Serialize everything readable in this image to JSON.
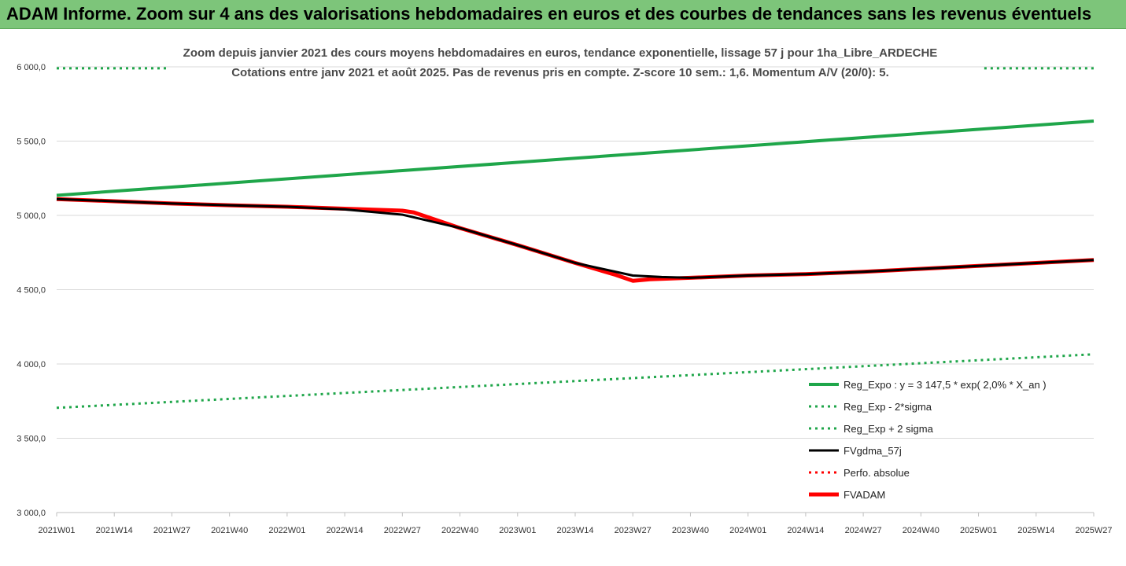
{
  "banner": {
    "title": "ADAM Informe. Zoom sur 4 ans des valorisations hebdomadaires en euros et des courbes de tendances sans les revenus éventuels"
  },
  "chart_data": {
    "type": "line",
    "title": "Zoom depuis janvier 2021 des cours moyens hebdomadaires en euros, tendance exponentielle, lissage 57 j pour 1ha_Libre_ARDECHE",
    "subtitle": "Cotations entre janv 2021 et août 2025.  Pas de revenus pris en compte. Z-score 10 sem.: 1,6. Momentum A/V (20/0): 5.",
    "xlabel": "",
    "ylabel": "",
    "ylim": [
      3000,
      6000
    ],
    "y_ticks": [
      "3 000,0",
      "3 500,0",
      "4 000,0",
      "4 500,0",
      "5 000,0",
      "5 500,0",
      "6 000,0"
    ],
    "x_ticks": [
      "2021W01",
      "2021W14",
      "2021W27",
      "2021W40",
      "2022W01",
      "2022W14",
      "2022W27",
      "2022W40",
      "2023W01",
      "2023W14",
      "2023W27",
      "2023W40",
      "2024W01",
      "2024W14",
      "2024W27",
      "2024W40",
      "2025W01",
      "2025W14",
      "2025W27"
    ],
    "grid": "horizontal",
    "legend_position": "bottom-right",
    "series": [
      {
        "name": "Reg_Expo : y = 3 147,5 * exp( 2,0% *  X_an )",
        "color": "#1fa64a",
        "style": "solid-thick",
        "points": [
          [
            0,
            5135
          ],
          [
            18,
            5635
          ]
        ]
      },
      {
        "name": "Reg_Exp - 2*sigma",
        "color": "#1fa64a",
        "style": "dotted",
        "points": [
          [
            0,
            3705
          ],
          [
            18,
            4065
          ]
        ]
      },
      {
        "name": "Reg_Exp + 2 sigma",
        "color": "#1fa64a",
        "style": "dotted",
        "points": [
          [
            0,
            5990
          ],
          [
            18,
            5990
          ]
        ]
      },
      {
        "name": "FVgdma_57j",
        "color": "#000000",
        "style": "solid",
        "points": [
          [
            0,
            5110
          ],
          [
            1,
            5095
          ],
          [
            2,
            5080
          ],
          [
            3,
            5068
          ],
          [
            4,
            5058
          ],
          [
            5,
            5040
          ],
          [
            6,
            5005
          ],
          [
            7,
            4915
          ],
          [
            8,
            4800
          ],
          [
            9,
            4680
          ],
          [
            10,
            4595
          ],
          [
            10.5,
            4585
          ],
          [
            11,
            4580
          ],
          [
            12,
            4595
          ],
          [
            13,
            4605
          ],
          [
            14,
            4620
          ],
          [
            15,
            4640
          ],
          [
            16,
            4660
          ],
          [
            17,
            4680
          ],
          [
            18,
            4700
          ]
        ]
      },
      {
        "name": "Perfo. absolue",
        "color": "#ff0000",
        "style": "dotted",
        "points": []
      },
      {
        "name": "FVADAM",
        "color": "#ff0000",
        "style": "solid-thick",
        "points": [
          [
            0,
            5110
          ],
          [
            1,
            5095
          ],
          [
            2,
            5080
          ],
          [
            3,
            5068
          ],
          [
            4,
            5058
          ],
          [
            5,
            5045
          ],
          [
            6,
            5032
          ],
          [
            6.2,
            5020
          ],
          [
            7,
            4915
          ],
          [
            8,
            4800
          ],
          [
            9,
            4680
          ],
          [
            9.7,
            4600
          ],
          [
            10,
            4560
          ],
          [
            10.3,
            4570
          ],
          [
            11,
            4580
          ],
          [
            12,
            4595
          ],
          [
            13,
            4605
          ],
          [
            14,
            4620
          ],
          [
            15,
            4640
          ],
          [
            16,
            4660
          ],
          [
            17,
            4680
          ],
          [
            18,
            4700
          ]
        ]
      }
    ]
  }
}
